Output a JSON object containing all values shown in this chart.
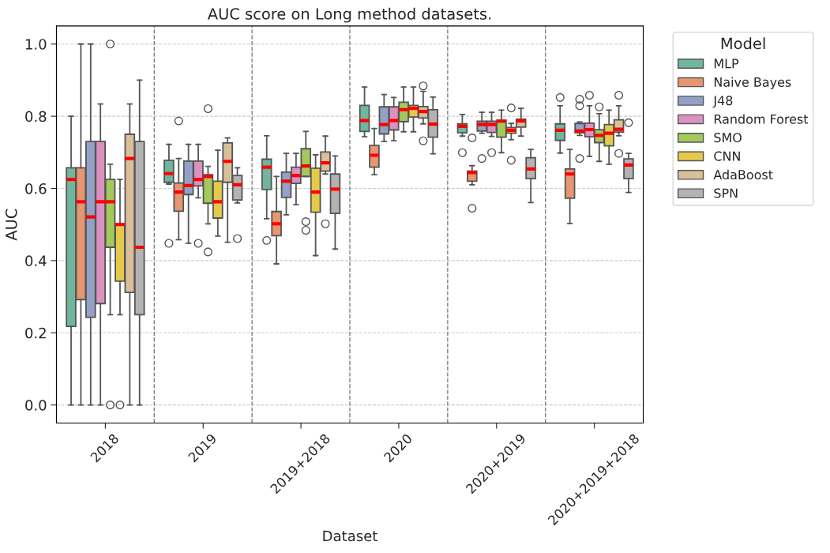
{
  "chart_data": {
    "type": "box",
    "title": "AUC score on Long method datasets.",
    "xlabel": "Dataset",
    "ylabel": "AUC",
    "legend_title": "Model",
    "categories": [
      "2018",
      "2019",
      "2019+2018",
      "2020",
      "2020+2019",
      "2020+2019+2018"
    ],
    "ylim": [
      -0.05,
      1.05
    ],
    "yticks": [
      {
        "value": 0,
        "label": "0.0"
      },
      0.2,
      0.4,
      0.6,
      0.8,
      {
        "value": 1,
        "label": "1.0"
      }
    ],
    "grid": "y",
    "legend": "top right",
    "series": [
      {
        "name": "MLP",
        "color": "#70b69e",
        "boxes": [
          {
            "low": 0.0,
            "q1": 0.218,
            "median": 0.625,
            "q3": 0.657,
            "high": 0.8
          },
          {
            "low": 0.612,
            "q1": 0.617,
            "median": 0.641,
            "q3": 0.678,
            "high": 0.722,
            "outliers": [
              0.448
            ]
          },
          {
            "low": 0.516,
            "q1": 0.597,
            "median": 0.659,
            "q3": 0.681,
            "high": 0.746,
            "outliers": [
              0.456
            ]
          },
          {
            "low": 0.743,
            "q1": 0.758,
            "median": 0.788,
            "q3": 0.83,
            "high": 0.881
          },
          {
            "low": 0.745,
            "q1": 0.754,
            "median": 0.772,
            "q3": 0.779,
            "high": 0.805,
            "outliers": [
              0.699
            ]
          },
          {
            "low": 0.698,
            "q1": 0.733,
            "median": 0.761,
            "q3": 0.779,
            "high": 0.829,
            "outliers": [
              0.852
            ]
          }
        ]
      },
      {
        "name": "Naive Bayes",
        "color": "#e79672",
        "boxes": [
          {
            "low": 0.0,
            "q1": 0.292,
            "median": 0.563,
            "q3": 0.657,
            "high": 1.0
          },
          {
            "low": 0.458,
            "q1": 0.537,
            "median": 0.59,
            "q3": 0.615,
            "high": 0.683,
            "outliers": [
              0.787
            ]
          },
          {
            "low": 0.391,
            "q1": 0.469,
            "median": 0.502,
            "q3": 0.536,
            "high": 0.633
          },
          {
            "low": 0.638,
            "q1": 0.659,
            "median": 0.692,
            "q3": 0.719,
            "high": 0.766
          },
          {
            "low": 0.61,
            "q1": 0.62,
            "median": 0.644,
            "q3": 0.648,
            "high": 0.663,
            "outliers": [
              0.74,
              0.545
            ]
          },
          {
            "low": 0.503,
            "q1": 0.573,
            "median": 0.64,
            "q3": 0.654,
            "high": 0.708
          }
        ]
      },
      {
        "name": "J48",
        "color": "#94a1c6",
        "boxes": [
          {
            "low": 0.0,
            "q1": 0.243,
            "median": 0.521,
            "q3": 0.73,
            "high": 1.0
          },
          {
            "low": 0.448,
            "q1": 0.583,
            "median": 0.608,
            "q3": 0.676,
            "high": 0.722
          },
          {
            "low": 0.527,
            "q1": 0.575,
            "median": 0.62,
            "q3": 0.645,
            "high": 0.697
          },
          {
            "low": 0.73,
            "q1": 0.751,
            "median": 0.777,
            "q3": 0.826,
            "high": 0.86
          },
          {
            "low": 0.753,
            "q1": 0.759,
            "median": 0.777,
            "q3": 0.786,
            "high": 0.811,
            "outliers": [
              0.683
            ]
          },
          {
            "low": 0.747,
            "q1": 0.754,
            "median": 0.759,
            "q3": 0.78,
            "high": 0.784,
            "outliers": [
              0.847,
              0.829,
              0.683
            ]
          }
        ]
      },
      {
        "name": "Random Forest",
        "color": "#dc92c0",
        "boxes": [
          {
            "low": 0.0,
            "q1": 0.281,
            "median": 0.563,
            "q3": 0.73,
            "high": 0.834
          },
          {
            "low": 0.574,
            "q1": 0.607,
            "median": 0.625,
            "q3": 0.676,
            "high": 0.722,
            "outliers": [
              0.448
            ]
          },
          {
            "low": 0.555,
            "q1": 0.614,
            "median": 0.636,
            "q3": 0.659,
            "high": 0.697
          },
          {
            "low": 0.732,
            "q1": 0.762,
            "median": 0.788,
            "q3": 0.826,
            "high": 0.852
          },
          {
            "low": 0.744,
            "q1": 0.755,
            "median": 0.777,
            "q3": 0.786,
            "high": 0.811,
            "outliers": [
              0.699
            ]
          },
          {
            "low": 0.689,
            "q1": 0.743,
            "median": 0.763,
            "q3": 0.781,
            "high": 0.829,
            "outliers": [
              0.858
            ]
          }
        ]
      },
      {
        "name": "SMO",
        "color": "#a3c95b",
        "boxes": [
          {
            "low": 0.25,
            "q1": 0.437,
            "median": 0.563,
            "q3": 0.625,
            "high": 0.667,
            "outliers": [
              1.0,
              0.0
            ]
          },
          {
            "low": 0.502,
            "q1": 0.559,
            "median": 0.633,
            "q3": 0.638,
            "high": 0.661,
            "outliers": [
              0.821,
              0.424
            ]
          },
          {
            "low": 0.633,
            "q1": 0.633,
            "median": 0.662,
            "q3": 0.71,
            "high": 0.758,
            "outliers": [
              0.508,
              0.484
            ]
          },
          {
            "low": 0.757,
            "q1": 0.785,
            "median": 0.818,
            "q3": 0.839,
            "high": 0.881
          },
          {
            "low": 0.699,
            "q1": 0.742,
            "median": 0.786,
            "q3": 0.789,
            "high": 0.817
          },
          {
            "low": 0.675,
            "q1": 0.727,
            "median": 0.747,
            "q3": 0.763,
            "high": 0.807,
            "outliers": [
              0.826
            ]
          }
        ]
      },
      {
        "name": "CNN",
        "color": "#e5c94a",
        "boxes": [
          {
            "low": 0.25,
            "q1": 0.343,
            "median": 0.5,
            "q3": 0.5,
            "high": 0.625,
            "outliers": [
              0.0
            ]
          },
          {
            "low": 0.468,
            "q1": 0.518,
            "median": 0.563,
            "q3": 0.62,
            "high": 0.706
          },
          {
            "low": 0.414,
            "q1": 0.534,
            "median": 0.59,
            "q3": 0.656,
            "high": 0.693
          },
          {
            "low": 0.757,
            "q1": 0.798,
            "median": 0.822,
            "q3": 0.83,
            "high": 0.881
          },
          {
            "low": 0.735,
            "q1": 0.753,
            "median": 0.761,
            "q3": 0.769,
            "high": 0.78,
            "outliers": [
              0.823,
              0.678
            ]
          },
          {
            "low": 0.667,
            "q1": 0.718,
            "median": 0.753,
            "q3": 0.777,
            "high": 0.817
          }
        ]
      },
      {
        "name": "AdaBoost",
        "color": "#d9c09a",
        "boxes": [
          {
            "low": 0.0,
            "q1": 0.312,
            "median": 0.683,
            "q3": 0.75,
            "high": 0.834
          },
          {
            "low": 0.451,
            "q1": 0.617,
            "median": 0.675,
            "q3": 0.726,
            "high": 0.74
          },
          {
            "low": 0.64,
            "q1": 0.648,
            "median": 0.671,
            "q3": 0.701,
            "high": 0.745,
            "outliers": [
              0.502
            ]
          },
          {
            "low": 0.779,
            "q1": 0.795,
            "median": 0.813,
            "q3": 0.827,
            "high": 0.869,
            "outliers": [
              0.884,
              0.732
            ]
          },
          {
            "low": 0.745,
            "q1": 0.77,
            "median": 0.787,
            "q3": 0.792,
            "high": 0.822
          },
          {
            "low": 0.746,
            "q1": 0.756,
            "median": 0.764,
            "q3": 0.79,
            "high": 0.829,
            "outliers": [
              0.858,
              0.697
            ]
          }
        ]
      },
      {
        "name": "SPN",
        "color": "#b3b3b3",
        "boxes": [
          {
            "low": 0.0,
            "q1": 0.25,
            "median": 0.437,
            "q3": 0.73,
            "high": 0.9
          },
          {
            "low": 0.56,
            "q1": 0.568,
            "median": 0.61,
            "q3": 0.636,
            "high": 0.657,
            "outliers": [
              0.461
            ]
          },
          {
            "low": 0.432,
            "q1": 0.531,
            "median": 0.598,
            "q3": 0.64,
            "high": 0.69
          },
          {
            "low": 0.696,
            "q1": 0.742,
            "median": 0.778,
            "q3": 0.818,
            "high": 0.853
          },
          {
            "low": 0.561,
            "q1": 0.627,
            "median": 0.654,
            "q3": 0.685,
            "high": 0.708
          },
          {
            "low": 0.589,
            "q1": 0.627,
            "median": 0.665,
            "q3": 0.682,
            "high": 0.697,
            "outliers": [
              0.782
            ]
          }
        ]
      }
    ]
  }
}
